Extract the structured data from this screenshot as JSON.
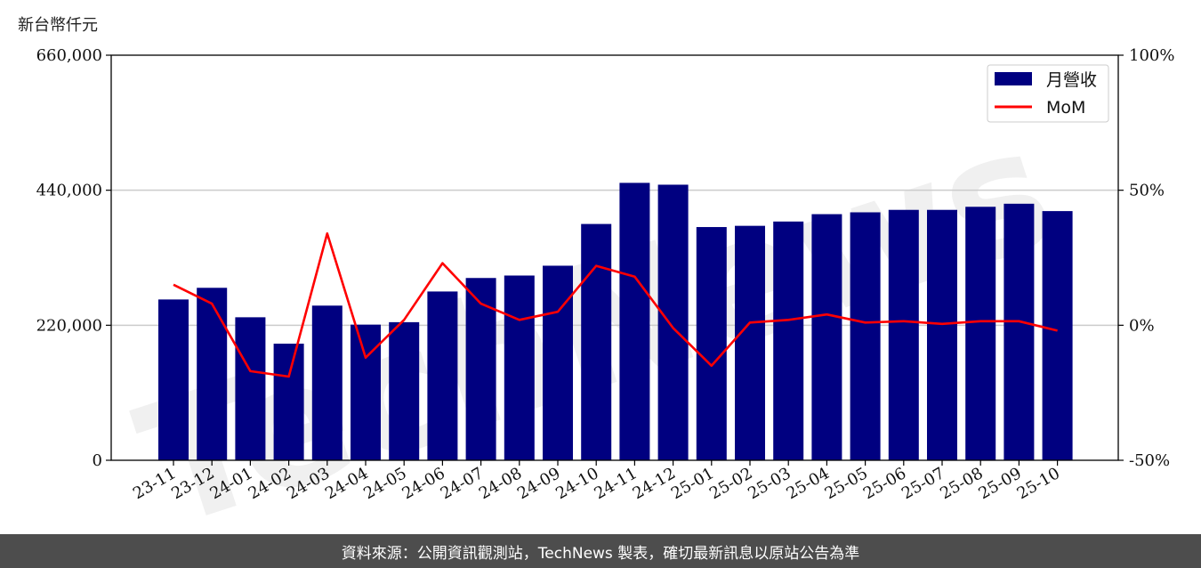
{
  "unit_label": "新台幣仟元",
  "footer_text": "資料來源：公開資訊觀測站，TechNews 製表，確切最新訊息以原站公告為準",
  "colors": {
    "bar": "#000080",
    "line": "#ff0000",
    "grid": "#cccccc",
    "footer_bg": "#4d4d4d"
  },
  "chart_data": {
    "type": "bar",
    "categories": [
      "23-11",
      "23-12",
      "24-01",
      "24-02",
      "24-03",
      "24-04",
      "24-05",
      "24-06",
      "24-07",
      "24-08",
      "24-09",
      "24-10",
      "24-11",
      "24-12",
      "25-01",
      "25-02",
      "25-03",
      "25-04",
      "25-05",
      "25-06",
      "25-07",
      "25-08",
      "25-09",
      "25-10"
    ],
    "series": [
      {
        "name": "月營收",
        "type": "bar",
        "axis": "left",
        "values": [
          262000,
          281000,
          233000,
          190000,
          252000,
          221000,
          225000,
          275000,
          297000,
          301000,
          317000,
          385000,
          452000,
          449000,
          380000,
          382000,
          389000,
          401000,
          404000,
          408000,
          408000,
          413000,
          418000,
          406000
        ]
      },
      {
        "name": "MoM",
        "type": "line",
        "axis": "right",
        "values": [
          15,
          8,
          -17,
          -19,
          34,
          -12,
          2,
          23,
          8,
          2,
          5,
          22,
          18,
          -1,
          -15,
          1,
          2,
          4,
          1,
          1.5,
          0.5,
          1.5,
          1.5,
          -2
        ]
      }
    ],
    "left_axis": {
      "ylim": [
        0,
        660000
      ],
      "ticks": [
        "0",
        "220,000",
        "440,000",
        "660,000"
      ],
      "tick_values": [
        0,
        220000,
        440000,
        660000
      ]
    },
    "right_axis": {
      "ylim": [
        -50,
        100
      ],
      "ticks": [
        "-50%",
        "0%",
        "50%",
        "100%"
      ],
      "tick_values": [
        -50,
        0,
        50,
        100
      ]
    },
    "grid": "horizontal",
    "legend": {
      "position": "top-right",
      "entries": [
        "月營收",
        "MoM"
      ]
    },
    "watermark": "TechNews"
  }
}
